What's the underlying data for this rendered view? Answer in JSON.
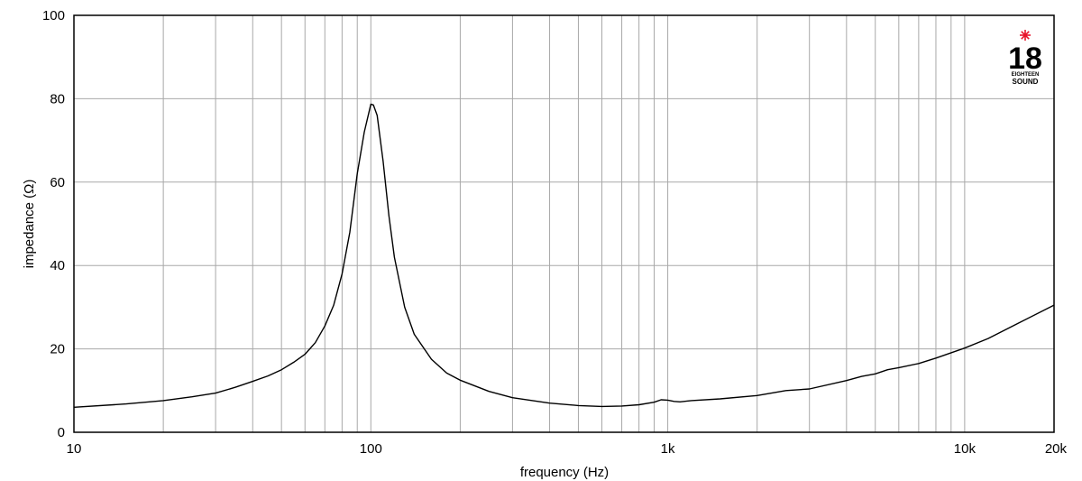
{
  "chart_data": {
    "type": "line",
    "title": "",
    "xlabel": "frequency (Hz)",
    "ylabel": "impedance (Ω)",
    "x_scale": "log",
    "xlim": [
      10,
      20000
    ],
    "ylim": [
      0,
      100
    ],
    "grid": true,
    "x_ticks": [
      {
        "value": 10,
        "label": "10"
      },
      {
        "value": 100,
        "label": "100"
      },
      {
        "value": 1000,
        "label": "1k"
      },
      {
        "value": 10000,
        "label": "10k"
      },
      {
        "value": 20000,
        "label": "20k"
      }
    ],
    "y_ticks": [
      {
        "value": 0,
        "label": "0"
      },
      {
        "value": 20,
        "label": "20"
      },
      {
        "value": 40,
        "label": "40"
      },
      {
        "value": 60,
        "label": "60"
      },
      {
        "value": 80,
        "label": "80"
      },
      {
        "value": 100,
        "label": "100"
      }
    ],
    "x_gridlines": [
      10,
      20,
      30,
      40,
      50,
      60,
      70,
      80,
      90,
      100,
      200,
      300,
      400,
      500,
      600,
      700,
      800,
      900,
      1000,
      2000,
      3000,
      4000,
      5000,
      6000,
      7000,
      8000,
      9000,
      10000,
      20000
    ],
    "series": [
      {
        "color": "#000000",
        "x": [
          10,
          15,
          20,
          25,
          30,
          35,
          40,
          45,
          50,
          55,
          60,
          65,
          70,
          75,
          80,
          85,
          90,
          95,
          100,
          102,
          105,
          110,
          115,
          120,
          130,
          140,
          160,
          180,
          200,
          250,
          300,
          400,
          500,
          600,
          700,
          800,
          900,
          950,
          1000,
          1050,
          1100,
          1200,
          1500,
          2000,
          2500,
          3000,
          4000,
          4500,
          5000,
          5500,
          6000,
          7000,
          8000,
          10000,
          12000,
          15000,
          20000
        ],
        "y": [
          6,
          6.8,
          7.6,
          8.5,
          9.4,
          10.8,
          12.2,
          13.5,
          15,
          16.8,
          18.7,
          21.5,
          25.5,
          30.5,
          38,
          48,
          62,
          72,
          78.7,
          78.5,
          76,
          65,
          52,
          42,
          30,
          23.5,
          17.5,
          14.2,
          12.5,
          9.8,
          8.3,
          7,
          6.4,
          6.2,
          6.3,
          6.6,
          7.2,
          7.8,
          7.7,
          7.4,
          7.3,
          7.6,
          8,
          8.8,
          10,
          10.4,
          12.4,
          13.4,
          14,
          15,
          15.5,
          16.5,
          17.8,
          20.2,
          22.5,
          26,
          30.5
        ]
      }
    ]
  },
  "logo": {
    "number": "18",
    "line1": "EIGHTEEN",
    "line2": "SOUND",
    "accent": "#e8142b"
  }
}
